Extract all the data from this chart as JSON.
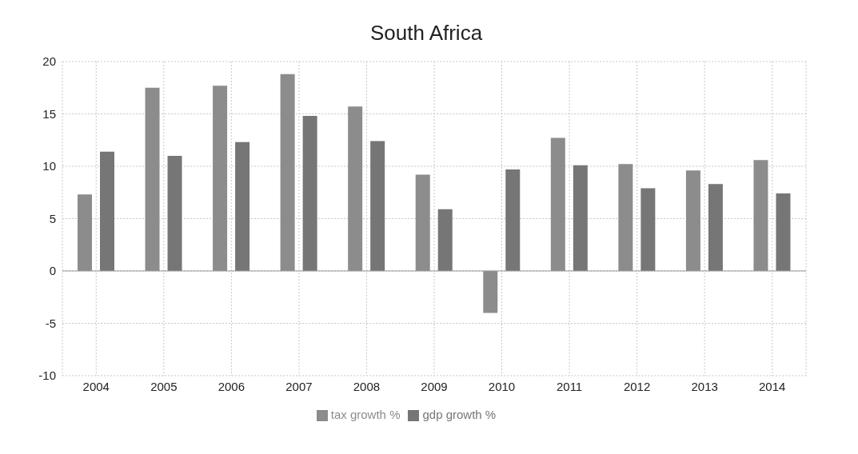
{
  "chart_data": {
    "type": "bar",
    "title": "South Africa",
    "categories": [
      "2004",
      "2005",
      "2006",
      "2007",
      "2008",
      "2009",
      "2010",
      "2011",
      "2012",
      "2013",
      "2014"
    ],
    "series": [
      {
        "name": "tax growth %",
        "color": "#8c8c8c",
        "values": [
          7.3,
          17.5,
          17.7,
          18.8,
          15.7,
          9.2,
          -4.0,
          12.7,
          10.2,
          9.6,
          10.6
        ]
      },
      {
        "name": "gdp growth %",
        "color": "#767676",
        "values": [
          11.4,
          11.0,
          12.3,
          14.8,
          12.4,
          5.9,
          9.7,
          10.1,
          7.9,
          8.3,
          7.4
        ]
      }
    ],
    "ylim": [
      -10,
      20
    ],
    "yticks": [
      -10,
      -5,
      0,
      5,
      10,
      15,
      20
    ],
    "grid": true,
    "legend": "bottom"
  }
}
